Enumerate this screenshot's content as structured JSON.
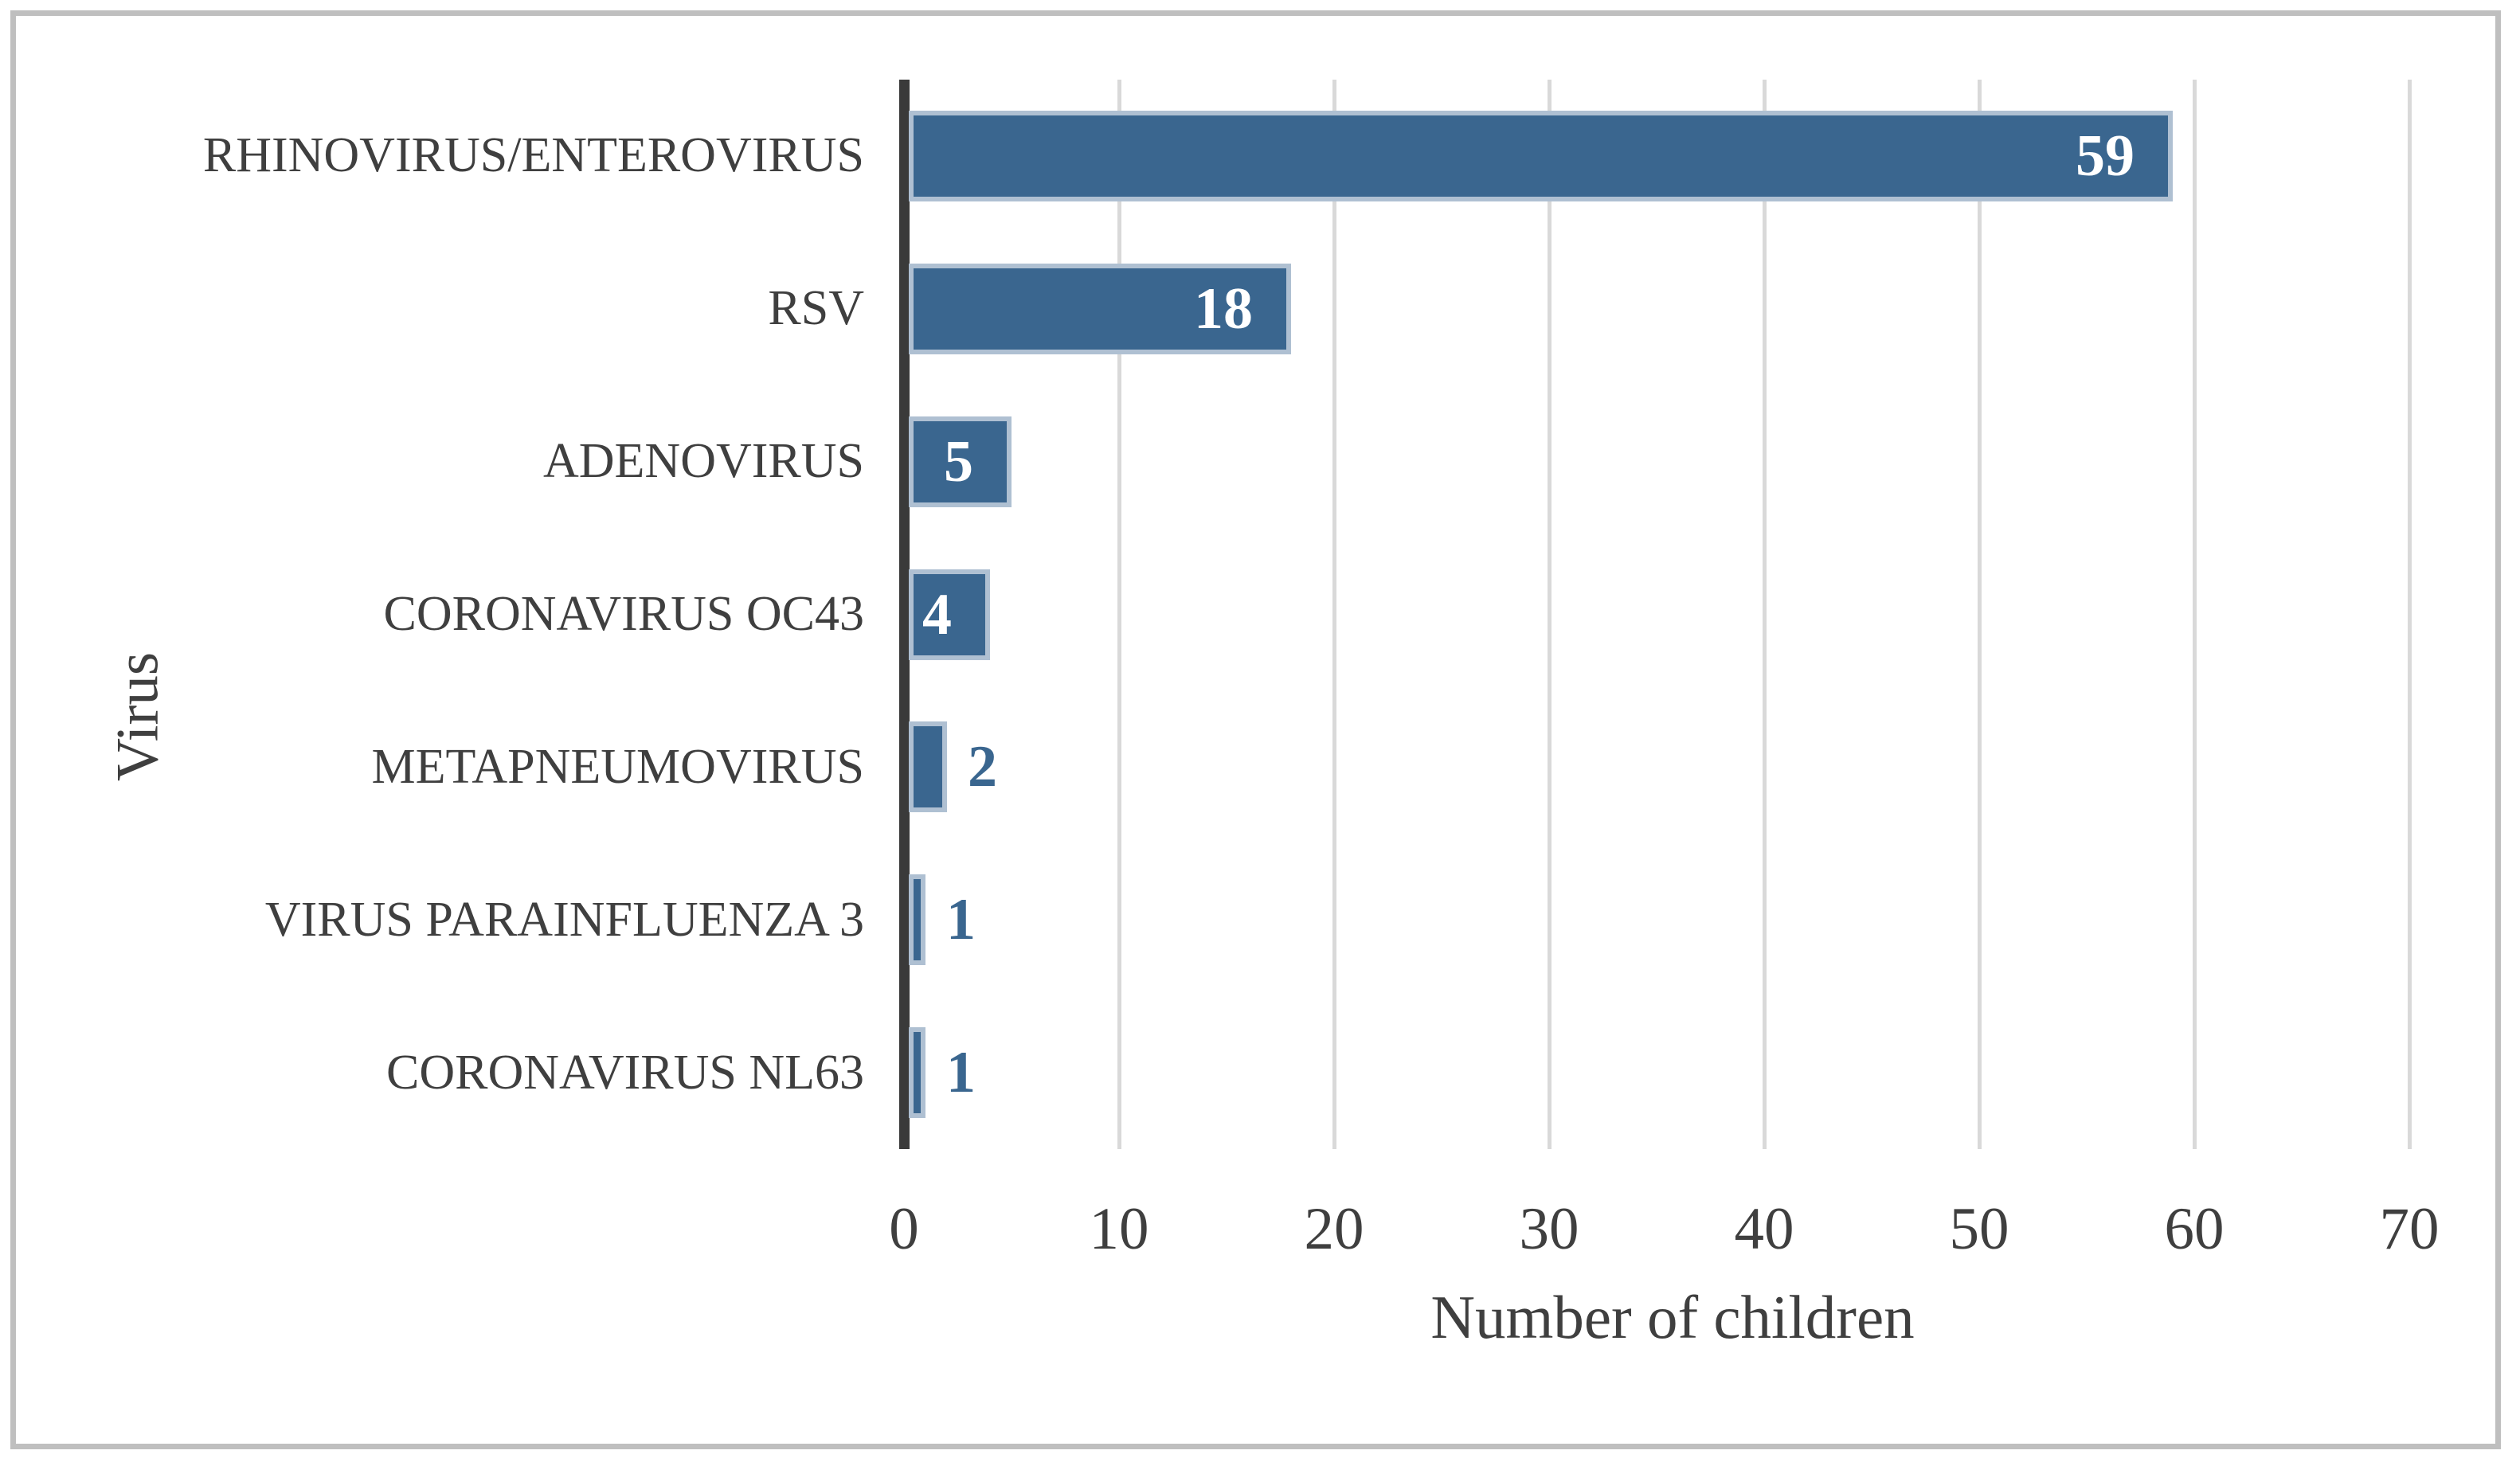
{
  "chart_data": {
    "type": "bar",
    "orientation": "horizontal",
    "title": "",
    "xlabel": "Number of children",
    "ylabel": "Virus",
    "categories": [
      "RHINOVIRUS/ENTEROVIRUS",
      "RSV",
      "ADENOVIRUS",
      "CORONAVIRUS OC43",
      "METAPNEUMOVIRUS",
      "VIRUS PARAINFLUENZA 3",
      "CORONAVIRUS NL63"
    ],
    "values": [
      59,
      18,
      5,
      4,
      2,
      1,
      1
    ],
    "xlim": [
      0,
      70
    ],
    "xticks": [
      0,
      10,
      20,
      30,
      40,
      50,
      60,
      70
    ],
    "grid": true,
    "legend": "none",
    "colors": {
      "bar_fill": "#3A668F",
      "bar_border": "#AFC0D2",
      "label_inside": "#FFFFFF",
      "label_outside": "#3A668F",
      "gridline": "#D9D9D9",
      "axis_line": "#3A3A3A",
      "text": "#3F3F3F",
      "frame_border": "#BFBFBF"
    }
  }
}
